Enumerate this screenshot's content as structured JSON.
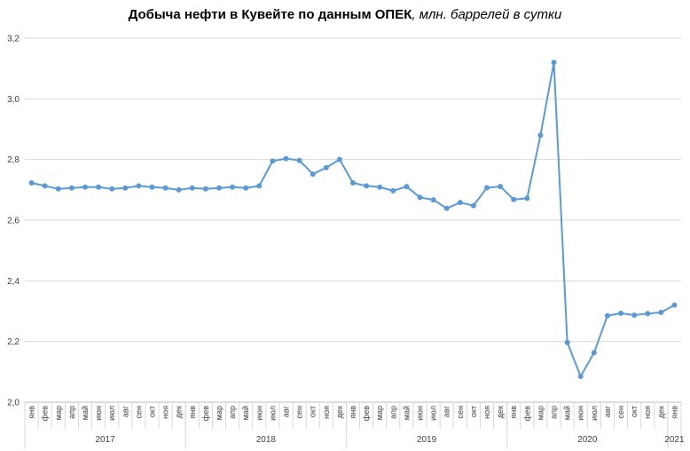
{
  "chart_data": {
    "type": "line",
    "title": "Добыча  нефти в Кувейте по данным  ОПЕК",
    "subtitle": ", млн. баррелей в сутки",
    "y_ticks": [
      "2,0",
      "2,2",
      "2,4",
      "2,6",
      "2,8",
      "3,0",
      "3,2"
    ],
    "ylim": [
      2.0,
      3.2
    ],
    "grid": true,
    "line_color": "#5b9bd5",
    "month_labels": [
      "янв",
      "фев",
      "мар",
      "апр",
      "май",
      "июн",
      "июл",
      "авг",
      "сен",
      "окт",
      "ноя",
      "дек",
      "янв",
      "фев",
      "мар",
      "апр",
      "май",
      "июн",
      "июл",
      "авг",
      "сен",
      "окт",
      "ноя",
      "дек",
      "янв",
      "фев",
      "мар",
      "апр",
      "май",
      "июн",
      "июл",
      "авг",
      "сен",
      "окт",
      "ноя",
      "дек",
      "янв",
      "фев",
      "мар",
      "апр",
      "май",
      "июн",
      "июл",
      "авг",
      "сен",
      "окт",
      "ноя",
      "дек",
      "янв"
    ],
    "year_groups": [
      {
        "label": "2017",
        "months": 12
      },
      {
        "label": "2018",
        "months": 12
      },
      {
        "label": "2019",
        "months": 12
      },
      {
        "label": "2020",
        "months": 12
      },
      {
        "label": "2021",
        "months": 1
      }
    ],
    "values": [
      2.723,
      2.713,
      2.703,
      2.706,
      2.709,
      2.709,
      2.703,
      2.706,
      2.713,
      2.709,
      2.706,
      2.7,
      2.706,
      2.703,
      2.706,
      2.709,
      2.706,
      2.713,
      2.795,
      2.803,
      2.797,
      2.752,
      2.773,
      2.8,
      2.723,
      2.713,
      2.709,
      2.697,
      2.711,
      2.675,
      2.667,
      2.639,
      2.658,
      2.648,
      2.707,
      2.711,
      2.668,
      2.672,
      2.88,
      3.12,
      2.197,
      2.085,
      2.163,
      2.285,
      2.293,
      2.287,
      2.292,
      2.296,
      2.32
    ]
  }
}
